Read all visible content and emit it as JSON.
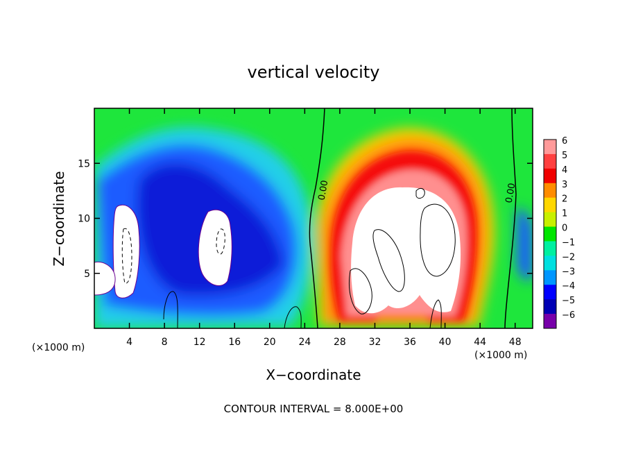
{
  "chart_data": {
    "type": "heatmap",
    "title": "vertical velocity",
    "xlabel": "X−coordinate",
    "ylabel": "Z−coordinate",
    "x_unit_left": "(×1000 m)",
    "x_unit_right": "(×1000 m)",
    "xlim": [
      0,
      50
    ],
    "ylim": [
      0,
      20
    ],
    "x_ticks": [
      4,
      8,
      12,
      16,
      20,
      24,
      28,
      32,
      36,
      40,
      44,
      48
    ],
    "y_ticks": [
      5,
      10,
      15
    ],
    "colorbar": {
      "levels": [
        6,
        5,
        4,
        3,
        2,
        1,
        0,
        -1,
        -2,
        -3,
        -4,
        -5,
        -6
      ],
      "labels": [
        "6",
        "5",
        "4",
        "3",
        "2",
        "1",
        "0",
        "−1",
        "−2",
        "−3",
        "−4",
        "−5",
        "−6"
      ],
      "colors": [
        "#ff9a9a",
        "#ff4040",
        "#f00000",
        "#ff8c00",
        "#ffd700",
        "#c8f000",
        "#00e600",
        "#00f0a0",
        "#00e0e0",
        "#0096ff",
        "#0000ff",
        "#0000b4",
        "#7800aa"
      ]
    },
    "contour_labels": [
      {
        "text": "0.00",
        "x": 24.5,
        "z": 13.5
      },
      {
        "text": "0.00",
        "x": 47.0,
        "z": 12.8
      }
    ],
    "contour_interval_text": "CONTOUR INTERVAL = 8.000E+00",
    "grid": false,
    "legend": "right colorbar"
  },
  "colors": {
    "background": "#ffffff",
    "field_base": "#1ee63c",
    "axis": "#000000"
  }
}
